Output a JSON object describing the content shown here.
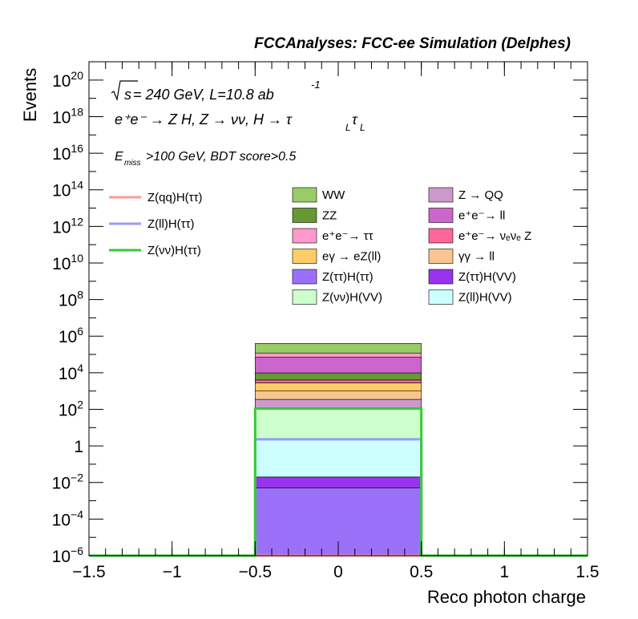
{
  "header": {
    "title": "FCCAnalyses: FCC-ee Simulation (Delphes)"
  },
  "annotations": {
    "line1_sqrt": "s",
    "line1_rest": " = 240 GeV, L=10.8 ab",
    "line1_exp": "-1",
    "line2": "e⁺e⁻ → Z H, Z → νν, H → τ",
    "line2_sub1": "L",
    "line2_tau": "τ",
    "line2_sub2": "L",
    "line3_E": "E",
    "line3_sub": "miss",
    "line3_rest": ">100 GeV, BDT score>0.5"
  },
  "chart_data": {
    "type": "bar",
    "stacked": true,
    "y_scale": "log",
    "xlabel": "Reco photon charge",
    "ylabel": "Events",
    "xlim": [
      -1.5,
      1.5
    ],
    "ylim": [
      1e-06,
      1e+21
    ],
    "bin": [
      -0.5,
      0.5
    ],
    "x_ticks": [
      {
        "v": -1.5,
        "label": "−1.5"
      },
      {
        "v": -1.0,
        "label": "−1"
      },
      {
        "v": -0.5,
        "label": "−0.5"
      },
      {
        "v": 0,
        "label": "0"
      },
      {
        "v": 0.5,
        "label": "0.5"
      },
      {
        "v": 1.0,
        "label": "1"
      },
      {
        "v": 1.5,
        "label": "1.5"
      }
    ],
    "y_ticks": [
      {
        "exp": -6,
        "base": "10",
        "sup": "−6"
      },
      {
        "exp": -4,
        "base": "10",
        "sup": "−4"
      },
      {
        "exp": -2,
        "base": "10",
        "sup": "−2"
      },
      {
        "exp": 0,
        "base": "1",
        "sup": ""
      },
      {
        "exp": 2,
        "base": "10",
        "sup": "2"
      },
      {
        "exp": 4,
        "base": "10",
        "sup": "4"
      },
      {
        "exp": 6,
        "base": "10",
        "sup": "6"
      },
      {
        "exp": 8,
        "base": "10",
        "sup": "8"
      },
      {
        "exp": 10,
        "base": "10",
        "sup": "10"
      },
      {
        "exp": 12,
        "base": "10",
        "sup": "12"
      },
      {
        "exp": 14,
        "base": "10",
        "sup": "14"
      },
      {
        "exp": 16,
        "base": "10",
        "sup": "16"
      },
      {
        "exp": 18,
        "base": "10",
        "sup": "18"
      },
      {
        "exp": 20,
        "base": "10",
        "sup": "20"
      }
    ],
    "stack": [
      {
        "name": "Z(ττ)H(ττ)",
        "color": "#9b70f9",
        "cum": 0.005
      },
      {
        "name": "Z(ττ)H(VV)",
        "color": "#9933ee",
        "cum": 0.02
      },
      {
        "name": "Z(ll)H(VV)",
        "color": "#ccffff",
        "cum": 2.3
      },
      {
        "name": "Z(νν)H(VV)",
        "color": "#ccffcc",
        "cum": 110
      },
      {
        "name": "Z → QQ",
        "color": "#cc99cc",
        "cum": 350
      },
      {
        "name": "γγ → ll",
        "color": "#f9c591",
        "cum": 1000
      },
      {
        "name": "eγ → eZ(ll)",
        "color": "#ffcc66",
        "cum": 2800
      },
      {
        "name": "e⁺e⁻→ ν_e ν_e Z",
        "color": "#ff6699",
        "cum": 4000
      },
      {
        "name": "ZZ",
        "color": "#669933",
        "cum": 9800
      },
      {
        "name": "e⁺e⁻→ ll",
        "color": "#cc66cc",
        "cum": 70000
      },
      {
        "name": "e⁺e⁻→ ττ",
        "color": "#ff99cc",
        "cum": 120000
      },
      {
        "name": "WW",
        "color": "#99cc66",
        "cum": 400000
      }
    ],
    "signals": [
      {
        "name": "Z(qq)H(ττ)",
        "color": "#ff9999",
        "value": 1e-06
      },
      {
        "name": "Z(ll)H(ττ)",
        "color": "#9999ff",
        "value": 2.3
      },
      {
        "name": "Z(νν)H(ττ)",
        "color": "#33cc33",
        "value": 110
      }
    ],
    "legend_signals": [
      {
        "label": "Z(qq)H(ττ)",
        "color": "#ff9999"
      },
      {
        "label": "Z(ll)H(ττ)",
        "color": "#9999ff"
      },
      {
        "label": "Z(νν)H(ττ)",
        "color": "#33cc33"
      }
    ],
    "legend_bkg": [
      {
        "label": "WW",
        "color": "#99cc66"
      },
      {
        "label": "Z → QQ",
        "color": "#cc99cc"
      },
      {
        "label": "ZZ",
        "color": "#669933"
      },
      {
        "label": "e⁺e⁻→ ll",
        "color": "#cc66cc"
      },
      {
        "label": "e⁺e⁻→ ττ",
        "color": "#ff99cc"
      },
      {
        "label": "e⁺e⁻→ νₑνₑ Z",
        "color": "#ff6699"
      },
      {
        "label": "eγ → eZ(ll)",
        "color": "#ffcc66"
      },
      {
        "label": "γγ → ll",
        "color": "#f9c591"
      },
      {
        "label": "Z(ττ)H(ττ)",
        "color": "#9b70f9"
      },
      {
        "label": "Z(ττ)H(VV)",
        "color": "#9933ee"
      },
      {
        "label": "Z(νν)H(VV)",
        "color": "#ccffcc"
      },
      {
        "label": "Z(ll)H(VV)",
        "color": "#ccffff"
      }
    ]
  }
}
